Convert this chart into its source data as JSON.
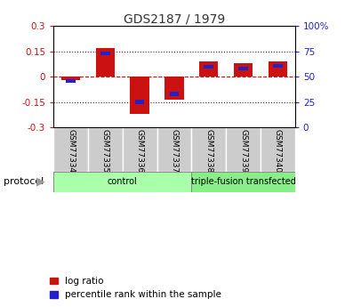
{
  "title": "GDS2187 / 1979",
  "samples": [
    "GSM77334",
    "GSM77335",
    "GSM77336",
    "GSM77337",
    "GSM77338",
    "GSM77339",
    "GSM77340"
  ],
  "log_ratios": [
    -0.02,
    0.17,
    -0.22,
    -0.135,
    0.09,
    0.08,
    0.09
  ],
  "percentile_ranks": [
    46,
    73,
    25,
    33,
    60,
    58,
    61
  ],
  "groups": [
    {
      "label": "control",
      "indices": [
        0,
        1,
        2,
        3
      ],
      "color": "#aaffaa"
    },
    {
      "label": "triple-fusion transfected",
      "indices": [
        4,
        5,
        6
      ],
      "color": "#88ee88"
    }
  ],
  "ylim": [
    -0.3,
    0.3
  ],
  "y_ticks_left": [
    -0.3,
    -0.15,
    0,
    0.15,
    0.3
  ],
  "bar_color_log": "#cc1111",
  "bar_color_pct": "#2222cc",
  "bar_width": 0.55,
  "legend_log": "log ratio",
  "legend_pct": "percentile rank within the sample",
  "protocol_label": "protocol",
  "background_color": "#ffffff"
}
